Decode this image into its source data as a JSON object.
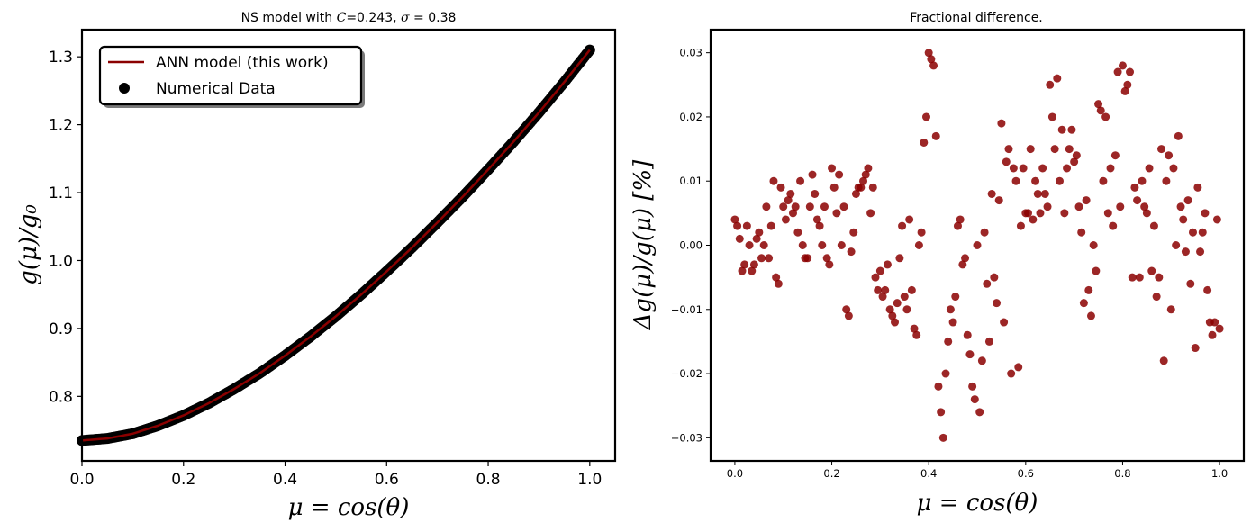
{
  "chart_data": [
    {
      "type": "line",
      "title": "NS model with C=0.243, σ = 0.38",
      "title_parts": {
        "prefix": "NS model with ",
        "var": "C",
        "mid": "=0.243, ",
        "sym": "σ",
        "suffix": " = 0.38"
      },
      "xlabel": "μ = cos(θ)",
      "ylabel": "g(μ)/g₀",
      "xlim": [
        0.0,
        1.05
      ],
      "ylim": [
        0.705,
        1.34
      ],
      "xticks": [
        "0.0",
        "0.2",
        "0.4",
        "0.6",
        "0.8",
        "1.0"
      ],
      "xtick_values": [
        0.0,
        0.2,
        0.4,
        0.6,
        0.8,
        1.0
      ],
      "yticks": [
        "0.8",
        "0.9",
        "1.0",
        "1.1",
        "1.2",
        "1.3"
      ],
      "ytick_values": [
        0.8,
        0.9,
        1.0,
        1.1,
        1.2,
        1.3
      ],
      "grid": false,
      "legend_position": "upper-left",
      "series": [
        {
          "name": "ANN model (this work)",
          "kind": "line",
          "color": "#8b0000",
          "x": [
            0.0,
            0.05,
            0.1,
            0.15,
            0.2,
            0.25,
            0.3,
            0.35,
            0.4,
            0.45,
            0.5,
            0.55,
            0.6,
            0.65,
            0.7,
            0.75,
            0.8,
            0.85,
            0.9,
            0.95,
            1.0
          ],
          "y": [
            0.735,
            0.738,
            0.745,
            0.757,
            0.772,
            0.79,
            0.811,
            0.834,
            0.86,
            0.888,
            0.918,
            0.95,
            0.984,
            1.019,
            1.056,
            1.094,
            1.134,
            1.175,
            1.218,
            1.263,
            1.31
          ]
        },
        {
          "name": "Numerical Data",
          "kind": "scatter",
          "color": "#000000",
          "x_range": [
            0.0,
            1.0
          ],
          "n_points": 500,
          "y_source": "same curve as ANN model"
        }
      ]
    },
    {
      "type": "scatter",
      "title": "Fractional difference.",
      "xlabel": "μ = cos(θ)",
      "ylabel": "Δg(μ)/g(μ)  [%]",
      "xlim": [
        -0.05,
        1.05
      ],
      "ylim": [
        -0.0336,
        0.0336
      ],
      "xticks": [
        "0.0",
        "0.2",
        "0.4",
        "0.6",
        "0.8",
        "1.0"
      ],
      "xtick_values": [
        0.0,
        0.2,
        0.4,
        0.6,
        0.8,
        1.0
      ],
      "yticks": [
        "−0.03",
        "−0.02",
        "−0.01",
        "0.00",
        "0.01",
        "0.02",
        "0.03"
      ],
      "ytick_values": [
        -0.03,
        -0.02,
        -0.01,
        0.0,
        0.01,
        0.02,
        0.03
      ],
      "grid": false,
      "series": [
        {
          "name": "",
          "color": "#8b0000",
          "alpha": 0.85,
          "x": [
            0.0,
            0.01,
            0.02,
            0.03,
            0.04,
            0.05,
            0.06,
            0.07,
            0.08,
            0.09,
            0.1,
            0.11,
            0.12,
            0.13,
            0.14,
            0.15,
            0.16,
            0.17,
            0.18,
            0.19,
            0.2,
            0.21,
            0.22,
            0.23,
            0.24,
            0.25,
            0.26,
            0.27,
            0.28,
            0.29,
            0.3,
            0.31,
            0.32,
            0.33,
            0.34,
            0.35,
            0.36,
            0.37,
            0.38,
            0.39,
            0.4,
            0.41,
            0.415,
            0.42,
            0.43,
            0.44,
            0.45,
            0.46,
            0.47,
            0.48,
            0.49,
            0.5,
            0.51,
            0.52,
            0.53,
            0.54,
            0.55,
            0.56,
            0.57,
            0.58,
            0.59,
            0.6,
            0.61,
            0.62,
            0.63,
            0.64,
            0.65,
            0.66,
            0.67,
            0.68,
            0.69,
            0.7,
            0.71,
            0.72,
            0.73,
            0.74,
            0.75,
            0.76,
            0.77,
            0.78,
            0.79,
            0.8,
            0.81,
            0.82,
            0.83,
            0.84,
            0.85,
            0.86,
            0.87,
            0.88,
            0.89,
            0.9,
            0.91,
            0.92,
            0.93,
            0.94,
            0.95,
            0.96,
            0.97,
            0.98,
            0.99,
            1.0,
            0.005,
            0.015,
            0.025,
            0.035,
            0.045,
            0.055,
            0.065,
            0.075,
            0.085,
            0.095,
            0.105,
            0.115,
            0.125,
            0.135,
            0.145,
            0.155,
            0.165,
            0.175,
            0.185,
            0.195,
            0.205,
            0.215,
            0.225,
            0.235,
            0.245,
            0.255,
            0.265,
            0.275,
            0.285,
            0.295,
            0.305,
            0.315,
            0.325,
            0.335,
            0.345,
            0.355,
            0.365,
            0.375,
            0.385,
            0.395,
            0.405,
            0.425,
            0.435,
            0.445,
            0.455,
            0.465,
            0.475,
            0.485,
            0.495,
            0.505,
            0.515,
            0.525,
            0.535,
            0.545,
            0.555,
            0.565,
            0.575,
            0.585,
            0.595,
            0.605,
            0.615,
            0.625,
            0.635,
            0.645,
            0.655,
            0.665,
            0.675,
            0.685,
            0.695,
            0.705,
            0.715,
            0.725,
            0.735,
            0.745,
            0.755,
            0.765,
            0.775,
            0.785,
            0.795,
            0.805,
            0.815,
            0.825,
            0.835,
            0.845,
            0.855,
            0.865,
            0.875,
            0.885,
            0.895,
            0.905,
            0.915,
            0.925,
            0.935,
            0.945,
            0.955,
            0.965,
            0.975,
            0.985,
            0.995
          ],
          "y": [
            0.004,
            0.001,
            -0.003,
            0.0,
            -0.003,
            0.002,
            0.0,
            -0.002,
            0.01,
            -0.006,
            0.006,
            0.007,
            0.005,
            0.002,
            0.0,
            -0.002,
            0.011,
            0.004,
            0.0,
            -0.002,
            0.012,
            0.005,
            0.0,
            -0.01,
            -0.001,
            0.008,
            0.009,
            0.011,
            0.005,
            -0.005,
            -0.004,
            -0.007,
            -0.01,
            -0.012,
            -0.002,
            -0.008,
            0.004,
            -0.013,
            0.0,
            0.016,
            0.03,
            0.028,
            0.017,
            -0.022,
            -0.03,
            -0.015,
            -0.012,
            0.003,
            -0.003,
            -0.014,
            -0.022,
            0.0,
            -0.018,
            -0.006,
            0.008,
            -0.009,
            0.019,
            0.013,
            -0.02,
            0.01,
            0.003,
            0.005,
            0.015,
            0.01,
            0.005,
            0.008,
            0.025,
            0.015,
            0.01,
            0.005,
            0.015,
            0.013,
            0.006,
            -0.009,
            -0.007,
            0.0,
            0.022,
            0.01,
            0.005,
            0.003,
            0.027,
            0.028,
            0.025,
            -0.005,
            0.007,
            0.01,
            0.005,
            -0.004,
            -0.008,
            0.015,
            0.01,
            -0.01,
            0.0,
            0.006,
            -0.001,
            -0.006,
            -0.016,
            -0.001,
            0.005,
            -0.012,
            -0.012,
            -0.013,
            0.003,
            -0.004,
            0.003,
            -0.004,
            0.001,
            -0.002,
            0.006,
            0.003,
            -0.005,
            0.009,
            0.004,
            0.008,
            0.006,
            0.01,
            -0.002,
            0.006,
            0.008,
            0.003,
            0.006,
            -0.003,
            0.009,
            0.011,
            0.006,
            -0.011,
            0.002,
            0.009,
            0.01,
            0.012,
            0.009,
            -0.007,
            -0.008,
            -0.003,
            -0.011,
            -0.009,
            0.003,
            -0.01,
            -0.007,
            -0.014,
            0.002,
            0.02,
            0.029,
            -0.026,
            -0.02,
            -0.01,
            -0.008,
            0.004,
            -0.002,
            -0.017,
            -0.024,
            -0.026,
            0.002,
            -0.015,
            -0.005,
            0.007,
            -0.012,
            0.015,
            0.012,
            -0.019,
            0.012,
            0.005,
            0.004,
            0.008,
            0.012,
            0.006,
            0.02,
            0.026,
            0.018,
            0.012,
            0.018,
            0.014,
            0.002,
            0.007,
            -0.011,
            -0.004,
            0.021,
            0.02,
            0.012,
            0.014,
            0.006,
            0.024,
            0.027,
            0.009,
            -0.005,
            0.006,
            0.012,
            0.003,
            -0.005,
            -0.018,
            0.014,
            0.012,
            0.017,
            0.004,
            0.007,
            0.002,
            0.009,
            0.002,
            -0.007,
            -0.014,
            0.004
          ]
        }
      ]
    }
  ]
}
